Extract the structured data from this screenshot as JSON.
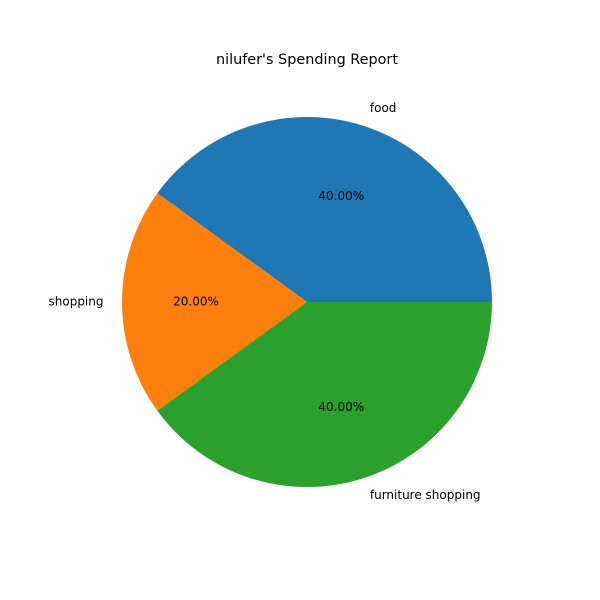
{
  "chart_data": {
    "type": "pie",
    "title": "nilufer's Spending Report",
    "categories": [
      "food",
      "shopping",
      "furniture shopping"
    ],
    "values": [
      40,
      20,
      40
    ],
    "percent_labels": [
      "40.00%",
      "20.00%",
      "40.00%"
    ],
    "colors": [
      "#1f77b4",
      "#ff7f0e",
      "#2ca02c"
    ],
    "start_angle_deg": 0,
    "direction": "counterclockwise",
    "legend": "none"
  }
}
